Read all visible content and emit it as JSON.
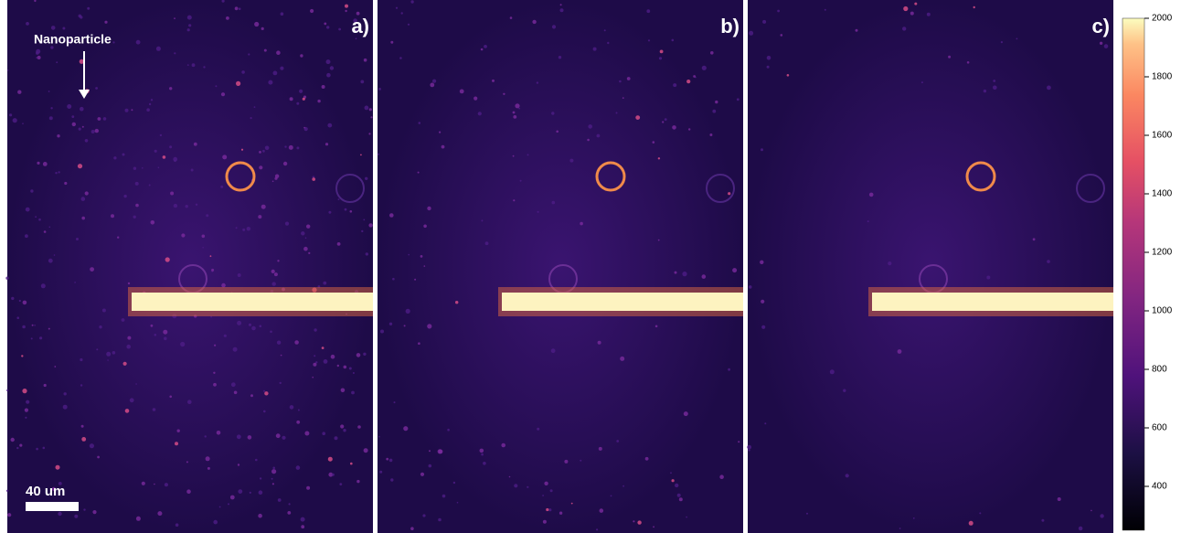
{
  "panels": [
    {
      "label": "a)"
    },
    {
      "label": "b)"
    },
    {
      "label": "c)"
    }
  ],
  "annotation": "Nanoparticle",
  "scale_bar": "40 um",
  "colorbar": {
    "lim": [
      250,
      2000
    ],
    "ticks": [
      2000,
      1800,
      1600,
      1400,
      1200,
      1000,
      800,
      600,
      400
    ]
  }
}
